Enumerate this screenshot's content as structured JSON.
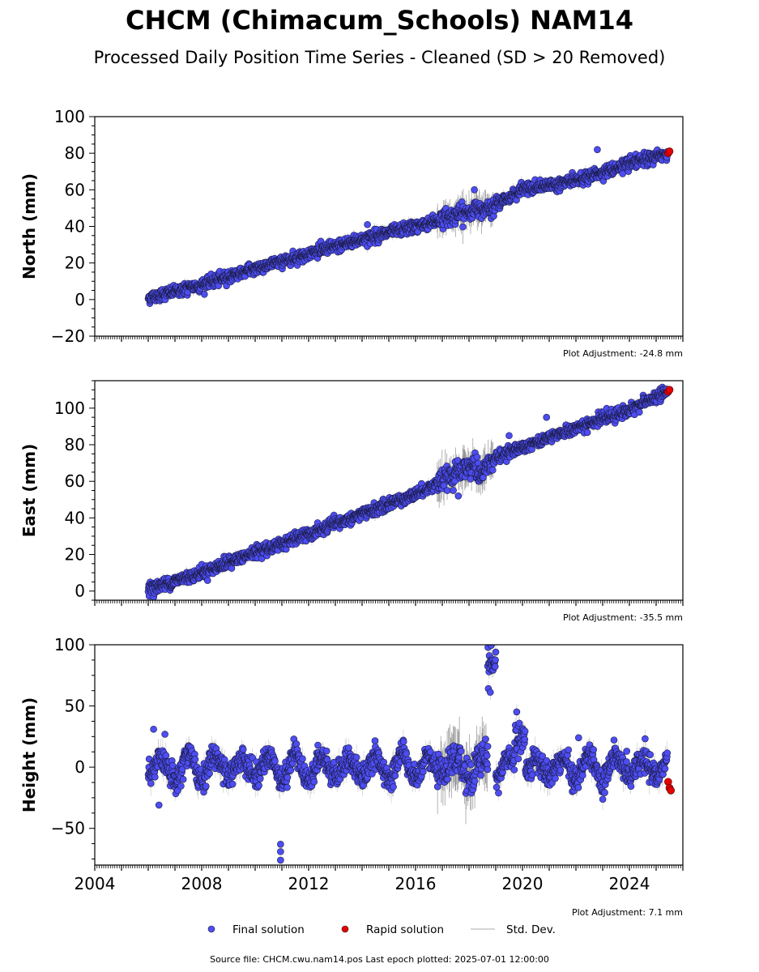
{
  "title": "CHCM (Chimacum_Schools) NAM14",
  "subtitle": "Processed Daily Position Time Series - Cleaned (SD > 20 Removed)",
  "source_line": "Source file: CHCM.cwu.nam14.pos  Last epoch plotted: 2025-07-01 12:00:00",
  "legend": {
    "final": "Final solution",
    "rapid": "Rapid solution",
    "std": "Std. Dev.",
    "final_color": "#4d4df2",
    "rapid_color": "#e60000",
    "std_color": "#c8c8c8"
  },
  "chart_data": [
    {
      "type": "scatter",
      "ylabel": "North (mm)",
      "adjustment": "Plot Adjustment: -24.8 mm",
      "xlim": [
        2004,
        2026
      ],
      "ylim": [
        -20,
        100
      ],
      "yticks": [
        -20,
        0,
        20,
        40,
        60,
        80,
        100
      ],
      "ytick_labels": [
        "−20",
        "0",
        "20",
        "40",
        "60",
        "80",
        "100"
      ],
      "trend": [
        [
          2006.0,
          1
        ],
        [
          2008,
          8
        ],
        [
          2010,
          17
        ],
        [
          2012,
          25
        ],
        [
          2014,
          33
        ],
        [
          2016,
          40
        ],
        [
          2017.5,
          46
        ],
        [
          2019,
          52
        ],
        [
          2020,
          60
        ],
        [
          2022,
          65
        ],
        [
          2024,
          74
        ],
        [
          2025.4,
          80
        ]
      ],
      "scatter_sd": 1.6,
      "noisy_windows": [
        [
          2016.8,
          2018.9,
          7
        ]
      ],
      "outliers": [
        [
          2014.2,
          41
        ],
        [
          2022.8,
          82
        ],
        [
          2018.2,
          60
        ]
      ],
      "rapid": [
        [
          2025.45,
          80
        ],
        [
          2025.5,
          81
        ]
      ]
    },
    {
      "type": "scatter",
      "ylabel": "East (mm)",
      "adjustment": "Plot Adjustment: -35.5 mm",
      "xlim": [
        2004,
        2026
      ],
      "ylim": [
        -5,
        115
      ],
      "yticks": [
        0,
        20,
        40,
        60,
        80,
        100
      ],
      "ytick_labels": [
        "0",
        "20",
        "40",
        "60",
        "80",
        "100"
      ],
      "trend": [
        [
          2006.0,
          1
        ],
        [
          2008,
          10
        ],
        [
          2010,
          21
        ],
        [
          2012,
          31
        ],
        [
          2014,
          42
        ],
        [
          2016,
          53
        ],
        [
          2018.2,
          69
        ],
        [
          2018.4,
          64
        ],
        [
          2019,
          73
        ],
        [
          2020,
          79
        ],
        [
          2022,
          89
        ],
        [
          2024,
          99
        ],
        [
          2025.4,
          109
        ]
      ],
      "scatter_sd": 1.6,
      "noisy_windows": [
        [
          2016.8,
          2018.9,
          8
        ]
      ],
      "outliers": [
        [
          2017.6,
          52
        ],
        [
          2019.5,
          85
        ],
        [
          2020.9,
          95
        ]
      ],
      "rapid": [
        [
          2025.45,
          109
        ],
        [
          2025.5,
          110
        ]
      ]
    },
    {
      "type": "scatter",
      "ylabel": "Height (mm)",
      "adjustment": "Plot Adjustment: 7.1 mm",
      "xlim": [
        2004,
        2026
      ],
      "ylim": [
        -80,
        100
      ],
      "yticks": [
        -50,
        0,
        50,
        100
      ],
      "ytick_labels": [
        "−50",
        "0",
        "50",
        "100"
      ],
      "xticks": [
        2004,
        2008,
        2012,
        2016,
        2020,
        2024
      ],
      "xtick_labels": [
        "2004",
        "2008",
        "2012",
        "2016",
        "2020",
        "2024"
      ],
      "trend": [
        [
          2006.0,
          0
        ],
        [
          2026,
          0
        ]
      ],
      "seasonal_amp": 9,
      "scatter_sd": 5,
      "noisy_windows": [
        [
          2016.8,
          2018.9,
          20
        ]
      ],
      "clusters": [
        [
          2018.7,
          2019.0,
          82,
          7
        ],
        [
          2019.7,
          2020.1,
          22,
          7
        ]
      ],
      "outliers": [
        [
          2006.4,
          -31
        ],
        [
          2010.95,
          -63
        ],
        [
          2010.95,
          -69
        ],
        [
          2010.95,
          -76
        ],
        [
          2006.2,
          31
        ],
        [
          2018.7,
          17
        ],
        [
          2017.7,
          13
        ],
        [
          2022.1,
          24
        ],
        [
          2023.9,
          13
        ]
      ],
      "rapid": [
        [
          2025.45,
          -12
        ],
        [
          2025.5,
          -17
        ],
        [
          2025.55,
          -19
        ]
      ]
    }
  ]
}
